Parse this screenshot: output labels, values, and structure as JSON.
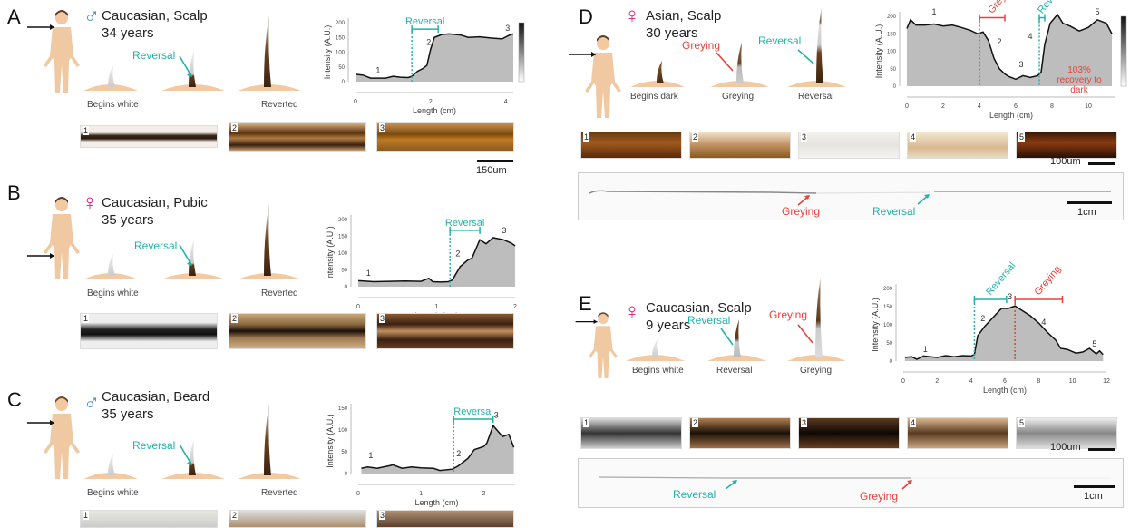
{
  "colors": {
    "teal": "#22b3a8",
    "red": "#e8413a",
    "male": "#3d8be0",
    "female": "#e0187a",
    "fill": "#bdbdbd",
    "skin": "#f2c9a0"
  },
  "panels": [
    {
      "letter": "A",
      "sex": "♂",
      "title": "Caucasian, Scalp",
      "age": "34 years",
      "stages": [
        "Begins white",
        "",
        "Reverted"
      ],
      "annot": "Reversal",
      "scale": "150um",
      "strips": [
        "1",
        "2",
        "3"
      ]
    },
    {
      "letter": "B",
      "sex": "♀",
      "title": "Caucasian, Pubic",
      "age": "35 years",
      "stages": [
        "Begins white",
        "",
        "Reverted"
      ],
      "annot": "Reversal",
      "strips": [
        "1",
        "2",
        "3"
      ]
    },
    {
      "letter": "C",
      "sex": "♂",
      "title": "Caucasian, Beard",
      "age": "35 years",
      "stages": [
        "Begins white",
        "",
        "Reverted"
      ],
      "annot": "Reversal",
      "strips": [
        "1",
        "2",
        "3"
      ]
    },
    {
      "letter": "D",
      "sex": "♀",
      "title": "Asian, Scalp",
      "age": "30 years",
      "stages": [
        "Begins dark",
        "Greying",
        "Reversal"
      ],
      "annot_grey": "Greying",
      "annot_rev": "Reversal",
      "scale": "100um",
      "scale2": "1cm",
      "strips": [
        "1",
        "2",
        "3",
        "4",
        "5"
      ],
      "hair_grey": "Greying",
      "hair_rev": "Reversal"
    },
    {
      "letter": "E",
      "sex": "♀",
      "title": "Caucasian, Scalp",
      "age": "9 years",
      "stages": [
        "Begins white",
        "Reversal",
        "Greying"
      ],
      "annot_rev": "Reversal",
      "annot_grey": "Greying",
      "scale": "100um",
      "scale2": "1cm",
      "strips": [
        "1",
        "2",
        "3",
        "4",
        "5"
      ],
      "hair_grey": "Greying",
      "hair_rev": "Reversal"
    }
  ],
  "chart_data": [
    {
      "panel": "A",
      "type": "area",
      "xlabel": "Length (cm)",
      "ylabel": "Intensity (A.U.)",
      "xlim": [
        0,
        4.2
      ],
      "ylim": [
        0,
        200
      ],
      "xticks": [
        0,
        2,
        4
      ],
      "yticks": [
        0,
        50,
        100,
        150,
        200
      ],
      "colorbar": true,
      "points": [
        [
          0,
          25
        ],
        [
          0.2,
          22
        ],
        [
          0.4,
          12
        ],
        [
          0.6,
          12
        ],
        [
          0.8,
          12
        ],
        [
          1.0,
          18
        ],
        [
          1.2,
          15
        ],
        [
          1.4,
          14
        ],
        [
          1.5,
          18
        ],
        [
          1.65,
          35
        ],
        [
          1.8,
          45
        ],
        [
          1.9,
          55
        ],
        [
          2.0,
          110
        ],
        [
          2.1,
          150
        ],
        [
          2.3,
          160
        ],
        [
          2.5,
          162
        ],
        [
          2.8,
          158
        ],
        [
          3.0,
          150
        ],
        [
          3.3,
          152
        ],
        [
          3.6,
          148
        ],
        [
          3.9,
          145
        ],
        [
          4.1,
          158
        ],
        [
          4.2,
          162
        ]
      ],
      "labels": [
        {
          "text": "1",
          "x": 0.6,
          "y": 30
        },
        {
          "text": "2",
          "x": 1.95,
          "y": 125
        },
        {
          "text": "3",
          "x": 4.05,
          "y": 172
        }
      ],
      "events": [
        {
          "name": "Reversal",
          "start": 1.5,
          "end": 2.2,
          "color": "teal",
          "bracket_y": 178
        }
      ]
    },
    {
      "panel": "B",
      "type": "area",
      "xlabel": "Length (cm)",
      "ylabel": "Intensity (A.U.)",
      "xlim": [
        0,
        2
      ],
      "ylim": [
        0,
        200
      ],
      "xticks": [
        0,
        1,
        2
      ],
      "yticks": [
        0,
        50,
        100,
        150,
        200
      ],
      "points": [
        [
          0,
          18
        ],
        [
          0.2,
          15
        ],
        [
          0.4,
          16
        ],
        [
          0.6,
          17
        ],
        [
          0.8,
          16
        ],
        [
          0.9,
          25
        ],
        [
          0.95,
          15
        ],
        [
          1.05,
          14
        ],
        [
          1.15,
          15
        ],
        [
          1.2,
          20
        ],
        [
          1.3,
          60
        ],
        [
          1.4,
          80
        ],
        [
          1.45,
          85
        ],
        [
          1.55,
          140
        ],
        [
          1.63,
          128
        ],
        [
          1.72,
          146
        ],
        [
          1.85,
          140
        ],
        [
          1.95,
          130
        ],
        [
          2.0,
          122
        ]
      ],
      "labels": [
        {
          "text": "1",
          "x": 0.13,
          "y": 32
        },
        {
          "text": "2",
          "x": 1.27,
          "y": 90
        },
        {
          "text": "3",
          "x": 1.86,
          "y": 160
        }
      ],
      "events": [
        {
          "name": "Reversal",
          "start": 1.17,
          "end": 1.55,
          "color": "teal",
          "bracket_y": 168
        }
      ]
    },
    {
      "panel": "C",
      "type": "area",
      "xlabel": "Length (cm)",
      "ylabel": "Intensity (A.U.)",
      "xlim": [
        0,
        2.5
      ],
      "ylim": [
        0,
        150
      ],
      "xticks": [
        0,
        1,
        2
      ],
      "yticks": [
        0,
        50,
        100,
        150
      ],
      "points": [
        [
          0.05,
          12
        ],
        [
          0.15,
          15
        ],
        [
          0.3,
          12
        ],
        [
          0.5,
          18
        ],
        [
          0.55,
          20
        ],
        [
          0.7,
          12
        ],
        [
          0.85,
          15
        ],
        [
          1.0,
          13
        ],
        [
          1.2,
          12
        ],
        [
          1.3,
          7
        ],
        [
          1.5,
          10
        ],
        [
          1.6,
          18
        ],
        [
          1.75,
          35
        ],
        [
          1.85,
          55
        ],
        [
          2.0,
          62
        ],
        [
          2.05,
          70
        ],
        [
          2.15,
          110
        ],
        [
          2.3,
          85
        ],
        [
          2.4,
          90
        ],
        [
          2.48,
          60
        ]
      ],
      "labels": [
        {
          "text": "1",
          "x": 0.2,
          "y": 35
        },
        {
          "text": "2",
          "x": 1.6,
          "y": 40
        },
        {
          "text": "3",
          "x": 2.2,
          "y": 128
        }
      ],
      "events": [
        {
          "name": "Reversal",
          "start": 1.52,
          "end": 2.15,
          "color": "teal",
          "bracket_y": 125
        }
      ]
    },
    {
      "panel": "D",
      "type": "area",
      "xlabel": "Length (cm)",
      "ylabel": "Intensity (A.U.)",
      "xlim": [
        0,
        11.5
      ],
      "ylim": [
        0,
        200
      ],
      "xticks": [
        0,
        2,
        4,
        6,
        8,
        10
      ],
      "yticks": [
        0,
        50,
        100,
        150,
        200
      ],
      "colorbar": true,
      "points": [
        [
          0,
          165
        ],
        [
          0.2,
          190
        ],
        [
          0.5,
          175
        ],
        [
          1,
          175
        ],
        [
          1.5,
          178
        ],
        [
          2,
          172
        ],
        [
          2.5,
          175
        ],
        [
          3,
          168
        ],
        [
          3.5,
          160
        ],
        [
          3.9,
          150
        ],
        [
          4.2,
          155
        ],
        [
          4.5,
          130
        ],
        [
          4.8,
          80
        ],
        [
          5.1,
          50
        ],
        [
          5.4,
          35
        ],
        [
          5.6,
          28
        ],
        [
          6,
          20
        ],
        [
          6.4,
          30
        ],
        [
          6.8,
          25
        ],
        [
          7.2,
          30
        ],
        [
          7.4,
          40
        ],
        [
          7.6,
          120
        ],
        [
          7.9,
          180
        ],
        [
          8.3,
          205
        ],
        [
          8.6,
          180
        ],
        [
          9,
          172
        ],
        [
          9.5,
          158
        ],
        [
          10,
          168
        ],
        [
          10.5,
          190
        ],
        [
          11,
          180
        ],
        [
          11.3,
          150
        ]
      ],
      "labels": [
        {
          "text": "1",
          "x": 1.5,
          "y": 205
        },
        {
          "text": "2",
          "x": 5.1,
          "y": 120
        },
        {
          "text": "3",
          "x": 6.3,
          "y": 55
        },
        {
          "text": "4",
          "x": 6.8,
          "y": 135
        },
        {
          "text": "5",
          "x": 10.5,
          "y": 205
        }
      ],
      "events": [
        {
          "name": "Greying",
          "start": 4.0,
          "end": 5.4,
          "color": "red",
          "bracket_y": 196
        },
        {
          "name": "Reversal",
          "start": 7.3,
          "end": 7.6,
          "color": "teal",
          "bracket_y": 196
        }
      ],
      "annotation": "103% recovery to dark"
    },
    {
      "panel": "E",
      "type": "area",
      "xlabel": "Length (cm)",
      "ylabel": "Intensity (A.U.)",
      "xlim": [
        0,
        12
      ],
      "ylim": [
        0,
        200
      ],
      "xticks": [
        0,
        2,
        4,
        6,
        8,
        10,
        12
      ],
      "yticks": [
        0,
        50,
        100,
        150,
        200
      ],
      "points": [
        [
          0.1,
          10
        ],
        [
          0.5,
          12
        ],
        [
          0.8,
          5
        ],
        [
          1.2,
          14
        ],
        [
          1.6,
          12
        ],
        [
          2,
          10
        ],
        [
          2.5,
          15
        ],
        [
          3,
          12
        ],
        [
          3.5,
          15
        ],
        [
          4,
          14
        ],
        [
          4.2,
          18
        ],
        [
          4.4,
          70
        ],
        [
          4.8,
          95
        ],
        [
          5.3,
          120
        ],
        [
          5.8,
          145
        ],
        [
          6.2,
          145
        ],
        [
          6.6,
          152
        ],
        [
          7,
          140
        ],
        [
          7.5,
          125
        ],
        [
          8,
          105
        ],
        [
          8.5,
          80
        ],
        [
          9,
          58
        ],
        [
          9.3,
          35
        ],
        [
          9.7,
          32
        ],
        [
          10.2,
          22
        ],
        [
          10.6,
          25
        ],
        [
          11,
          35
        ],
        [
          11.4,
          20
        ],
        [
          11.6,
          28
        ],
        [
          11.8,
          18
        ]
      ],
      "labels": [
        {
          "text": "1",
          "x": 1.3,
          "y": 25
        },
        {
          "text": "2",
          "x": 4.7,
          "y": 110
        },
        {
          "text": "3",
          "x": 6.3,
          "y": 170
        },
        {
          "text": "4",
          "x": 8.3,
          "y": 100
        },
        {
          "text": "5",
          "x": 11.3,
          "y": 40
        }
      ],
      "events": [
        {
          "name": "Reversal",
          "start": 4.2,
          "end": 6.1,
          "color": "teal",
          "bracket_y": 170
        },
        {
          "name": "Greying",
          "start": 6.6,
          "end": 9.4,
          "color": "red",
          "bracket_y": 170
        }
      ]
    }
  ]
}
